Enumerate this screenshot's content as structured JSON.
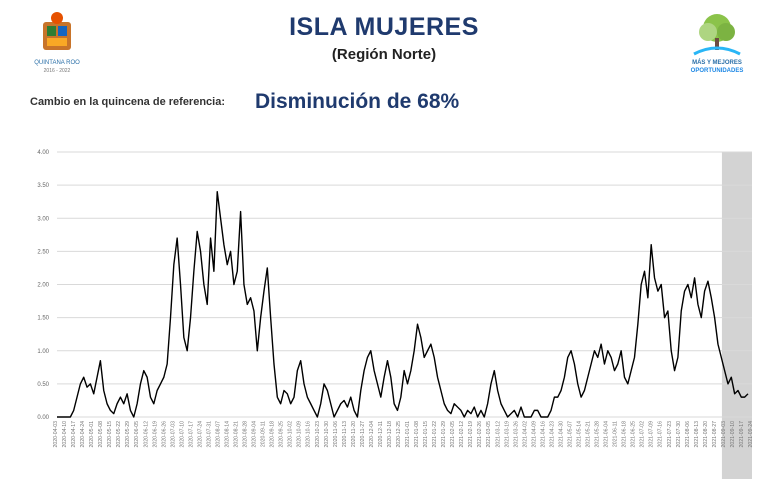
{
  "header": {
    "title": "ISLA MUJERES",
    "subtitle": "(Región Norte)",
    "change_label": "Cambio en la quincena de referencia:",
    "change_value": "Disminución de 68%"
  },
  "logos": {
    "left_caption": "QUINTANA ROO",
    "left_sub": "2016 - 2022",
    "right_caption": "MÁS Y MEJORES",
    "right_sub": "OPORTUNIDADES"
  },
  "colors": {
    "title": "#1f3a6e",
    "line": "#000000",
    "grid": "#d9d9d9",
    "shade": "#d3d3d3"
  },
  "chart_data": {
    "type": "line",
    "title": "",
    "xlabel": "",
    "ylabel": "",
    "ylim": [
      0,
      4
    ],
    "yticks": [
      "0.00",
      "0.50",
      "1.00",
      "1.50",
      "2.00",
      "2.50",
      "3.00",
      "3.50",
      "4.00"
    ],
    "grid": true,
    "shaded_region_start_index": 74,
    "xticks": [
      "2020-04-03",
      "2020-04-10",
      "2020-04-17",
      "2020-04-24",
      "2020-05-01",
      "2020-05-08",
      "2020-05-15",
      "2020-05-22",
      "2020-05-29",
      "2020-06-05",
      "2020-06-12",
      "2020-06-19",
      "2020-06-26",
      "2020-07-03",
      "2020-07-10",
      "2020-07-17",
      "2020-07-24",
      "2020-07-31",
      "2020-08-07",
      "2020-08-14",
      "2020-08-21",
      "2020-08-28",
      "2020-09-04",
      "2020-09-11",
      "2020-09-18",
      "2020-09-25",
      "2020-10-02",
      "2020-10-09",
      "2020-10-16",
      "2020-10-23",
      "2020-10-30",
      "2020-11-06",
      "2020-11-13",
      "2020-11-20",
      "2020-11-27",
      "2020-12-04",
      "2020-12-11",
      "2020-12-18",
      "2020-12-25",
      "2021-01-01",
      "2021-01-08",
      "2021-01-15",
      "2021-01-22",
      "2021-01-29",
      "2021-02-05",
      "2021-02-12",
      "2021-02-19",
      "2021-02-26",
      "2021-03-05",
      "2021-03-12",
      "2021-03-19",
      "2021-03-26",
      "2021-04-02",
      "2021-04-09",
      "2021-04-16",
      "2021-04-23",
      "2021-04-30",
      "2021-05-07",
      "2021-05-14",
      "2021-05-21",
      "2021-05-28",
      "2021-06-04",
      "2021-06-11",
      "2021-06-18",
      "2021-06-25",
      "2021-07-02",
      "2021-07-09",
      "2021-07-16",
      "2021-07-23",
      "2021-07-30",
      "2021-08-06",
      "2021-08-13",
      "2021-08-20",
      "2021-08-27",
      "2021-09-03",
      "2021-09-10",
      "2021-09-17",
      "2021-09-24"
    ],
    "series": [
      {
        "values": [
          0,
          0,
          0,
          0,
          0,
          0.1,
          0.3,
          0.5,
          0.6,
          0.45,
          0.5,
          0.35,
          0.6,
          0.85,
          0.4,
          0.2,
          0.1,
          0.05,
          0.2,
          0.3,
          0.2,
          0.35,
          0.1,
          0,
          0.2,
          0.5,
          0.7,
          0.6,
          0.3,
          0.2,
          0.4,
          0.5,
          0.6,
          0.8,
          1.5,
          2.3,
          2.7,
          2.0,
          1.2,
          1.0,
          1.5,
          2.2,
          2.8,
          2.5,
          2.0,
          1.7,
          2.7,
          2.2,
          3.4,
          3.0,
          2.6,
          2.3,
          2.5,
          2.0,
          2.2,
          3.1,
          2.0,
          1.7,
          1.8,
          1.6,
          1.0,
          1.5,
          1.9,
          2.25,
          1.5,
          0.8,
          0.3,
          0.2,
          0.4,
          0.35,
          0.2,
          0.3,
          0.7,
          0.85,
          0.5,
          0.3,
          0.2,
          0.1,
          0,
          0.2,
          0.5,
          0.4,
          0.2,
          0,
          0.1,
          0.2,
          0.25,
          0.15,
          0.3,
          0.1,
          0,
          0.4,
          0.7,
          0.9,
          1.0,
          0.7,
          0.5,
          0.3,
          0.6,
          0.85,
          0.6,
          0.2,
          0.1,
          0.3,
          0.7,
          0.5,
          0.7,
          1.0,
          1.4,
          1.2,
          0.9,
          1.0,
          1.1,
          0.9,
          0.6,
          0.4,
          0.2,
          0.1,
          0.05,
          0.2,
          0.15,
          0.1,
          0,
          0.1,
          0.05,
          0.15,
          0,
          0.1,
          0,
          0.2,
          0.5,
          0.7,
          0.4,
          0.2,
          0.1,
          0,
          0.05,
          0.1,
          0,
          0.15,
          0,
          0,
          0,
          0.1,
          0.1,
          0,
          0,
          0,
          0.1,
          0.3,
          0.3,
          0.4,
          0.6,
          0.9,
          1.0,
          0.8,
          0.5,
          0.3,
          0.4,
          0.6,
          0.8,
          1.0,
          0.9,
          1.1,
          0.8,
          1.0,
          0.9,
          0.7,
          0.8,
          1.0,
          0.6,
          0.5,
          0.7,
          0.9,
          1.4,
          2.0,
          2.2,
          1.8,
          2.6,
          2.1,
          1.9,
          2.0,
          1.5,
          1.6,
          1.0,
          0.7,
          0.9,
          1.6,
          1.9,
          2.0,
          1.8,
          2.1,
          1.7,
          1.5,
          1.9,
          2.05,
          1.8,
          1.5,
          1.1,
          0.9,
          0.7,
          0.5,
          0.6,
          0.35,
          0.4,
          0.3,
          0.3,
          0.35
        ]
      }
    ]
  }
}
